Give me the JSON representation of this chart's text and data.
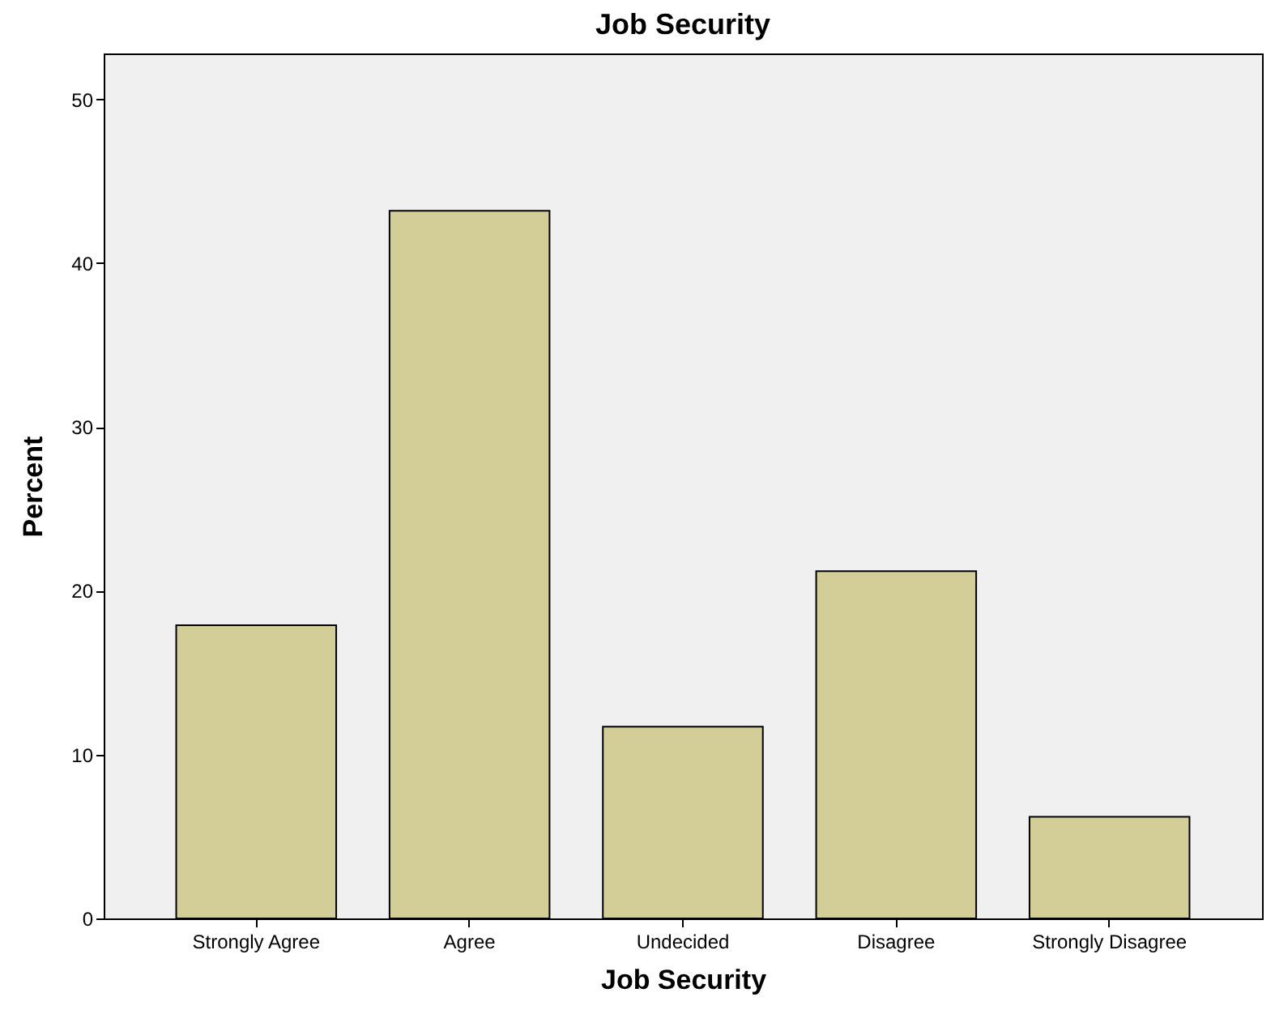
{
  "chart_data": {
    "type": "bar",
    "title": "Job Security",
    "xlabel": "Job Security",
    "ylabel": "Percent",
    "categories": [
      "Strongly Agree",
      "Agree",
      "Undecided",
      "Disagree",
      "Strongly Disagree"
    ],
    "values": [
      17.9,
      43.2,
      11.7,
      21.2,
      6.2
    ],
    "color": "#d3ce97",
    "ylim": [
      0,
      52.8
    ],
    "yticks": [
      0,
      10,
      20,
      30,
      40,
      50
    ],
    "grid": false
  }
}
